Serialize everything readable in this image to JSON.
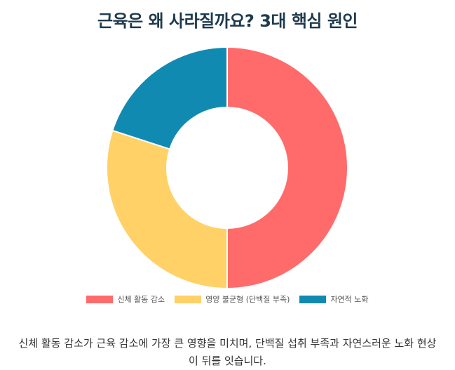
{
  "title": "근육은 왜 사라질까요? 3대 핵심 원인",
  "caption": "신체 활동 감소가 근육 감소에 가장 큰 영향을 미치며, 단백질 섭취 부족과 자연스러운 노화 현상이 뒤를 잇습니다.",
  "chart_data": {
    "type": "pie",
    "title": "근육은 왜 사라질까요? 3대 핵심 원인",
    "categories": [
      "신체 활동 감소",
      "영양 불균형 (단백질 부족)",
      "자연적 노화"
    ],
    "values": [
      50,
      30,
      20
    ],
    "colors": [
      "#ff6b6b",
      "#ffd166",
      "#118ab2"
    ],
    "donut": true,
    "legend": "bottom"
  }
}
